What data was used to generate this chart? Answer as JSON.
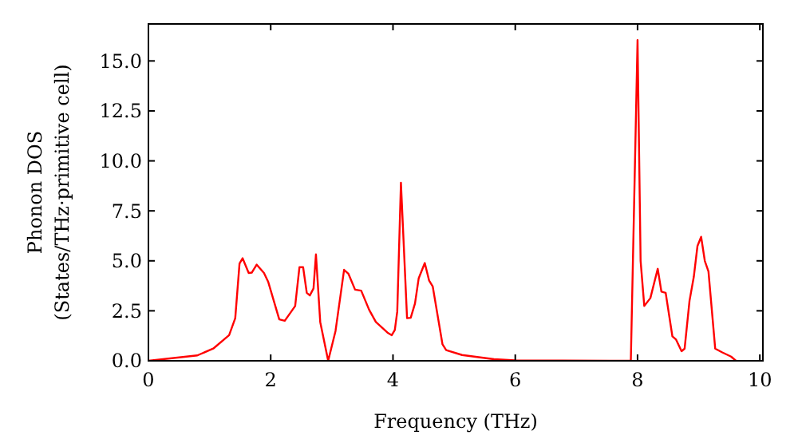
{
  "chart_data": {
    "type": "line",
    "xlabel": "Frequency (THz)",
    "ylabel": "Phonon DOS\n(States/THz·primitive cell)",
    "xlim": [
      0,
      10.05
    ],
    "ylim": [
      0,
      16.85
    ],
    "xticks": [
      0,
      2,
      4,
      6,
      8,
      10
    ],
    "yticks": [
      {
        "value": 0,
        "label": "0.0"
      },
      {
        "value": 2.5,
        "label": "2.5"
      },
      {
        "value": 5,
        "label": "5.0"
      },
      {
        "value": 7.5,
        "label": "7.5"
      },
      {
        "value": 10,
        "label": "10.0"
      },
      {
        "value": 12.5,
        "label": "12.5"
      },
      {
        "value": 15,
        "label": "15.0"
      }
    ],
    "grid": false,
    "marker": "none",
    "line_style": "solid",
    "series": [
      {
        "color": "#ff0000",
        "x": [
          0,
          0.8,
          1.06,
          1.32,
          1.42,
          1.49,
          1.54,
          1.64,
          1.69,
          1.77,
          1.89,
          1.96,
          2.14,
          2.23,
          2.4,
          2.47,
          2.53,
          2.59,
          2.64,
          2.7,
          2.74,
          2.81,
          2.94,
          3.06,
          3.2,
          3.27,
          3.38,
          3.48,
          3.61,
          3.72,
          3.91,
          3.98,
          4.03,
          4.07,
          4.13,
          4.23,
          4.29,
          4.36,
          4.42,
          4.52,
          4.59,
          4.65,
          4.81,
          4.87,
          5.13,
          5.65,
          6.0,
          7.89,
          8.0,
          8.05,
          8.11,
          8.21,
          8.33,
          8.39,
          8.46,
          8.57,
          8.63,
          8.72,
          8.77,
          8.85,
          8.92,
          8.98,
          9.04,
          9.1,
          9.16,
          9.27,
          9.38,
          9.53,
          9.61
        ],
        "values": [
          0,
          0.27,
          0.61,
          1.28,
          2.13,
          4.87,
          5.13,
          4.39,
          4.41,
          4.81,
          4.39,
          3.94,
          2.07,
          2.0,
          2.74,
          4.68,
          4.68,
          3.4,
          3.27,
          3.62,
          5.32,
          1.94,
          0,
          1.49,
          4.55,
          4.36,
          3.56,
          3.51,
          2.55,
          1.94,
          1.41,
          1.28,
          1.54,
          2.47,
          8.91,
          2.13,
          2.15,
          2.87,
          4.12,
          4.89,
          4.02,
          3.72,
          0.82,
          0.53,
          0.29,
          0.08,
          0.02,
          0,
          16.04,
          5.0,
          2.74,
          3.14,
          4.6,
          3.46,
          3.4,
          1.22,
          1.06,
          0.48,
          0.61,
          3.0,
          4.2,
          5.74,
          6.2,
          5.0,
          4.47,
          0.61,
          0.43,
          0.21,
          0
        ]
      }
    ]
  }
}
